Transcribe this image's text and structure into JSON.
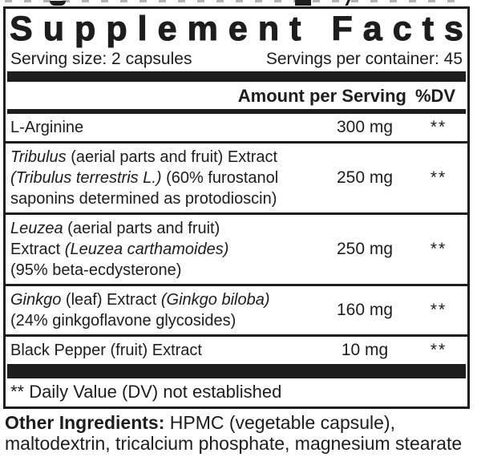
{
  "colors": {
    "ink": "#1d1d1b",
    "background": "#ffffff"
  },
  "panel": {
    "title": "Supplement Facts",
    "serving_size_label": "Serving size: 2 capsules",
    "servings_per_container_label": "Servings per container: 45",
    "columns": {
      "amount_header": "Amount per Serving",
      "dv_header": "%DV"
    },
    "rows": [
      {
        "name_segments": [
          {
            "t": "L-Arginine"
          }
        ],
        "amount": "300 mg",
        "dv": "**"
      },
      {
        "name_segments": [
          {
            "t": "Tribulus",
            "i": true
          },
          {
            "t": " (aerial parts and fruit) Extract"
          },
          {
            "br": true
          },
          {
            "t": "(Tribulus terrestris L.)",
            "i": true
          },
          {
            "t": " (60% furostanol"
          },
          {
            "br": true
          },
          {
            "t": "saponins determined as protodioscin)"
          }
        ],
        "amount": "250 mg",
        "dv": "**"
      },
      {
        "name_segments": [
          {
            "t": "Leuzea",
            "i": true
          },
          {
            "t": " (aerial parts and fruit)"
          },
          {
            "br": true
          },
          {
            "t": "Extract "
          },
          {
            "t": "(Leuzea carthamoides)",
            "i": true
          },
          {
            "br": true
          },
          {
            "t": "(95% beta-ecdysterone)"
          }
        ],
        "amount": "250 mg",
        "dv": "**"
      },
      {
        "name_segments": [
          {
            "t": "Ginkgo",
            "i": true
          },
          {
            "t": " (leaf) Extract "
          },
          {
            "t": "(Ginkgo biloba)",
            "i": true
          },
          {
            "br": true
          },
          {
            "t": "(24% ginkgoflavone glycosides)"
          }
        ],
        "amount": "160 mg",
        "dv": "**"
      },
      {
        "name_segments": [
          {
            "t": "Black Pepper (fruit) Extract"
          }
        ],
        "amount": "10 mg",
        "dv": "**"
      }
    ],
    "footnote": "** Daily Value (DV) not established"
  },
  "other_ingredients": {
    "label": "Other Ingredients:",
    "text": " HPMC (vegetable capsule), maltodextrin, tricalcium phosphate, magnesium stearate"
  }
}
